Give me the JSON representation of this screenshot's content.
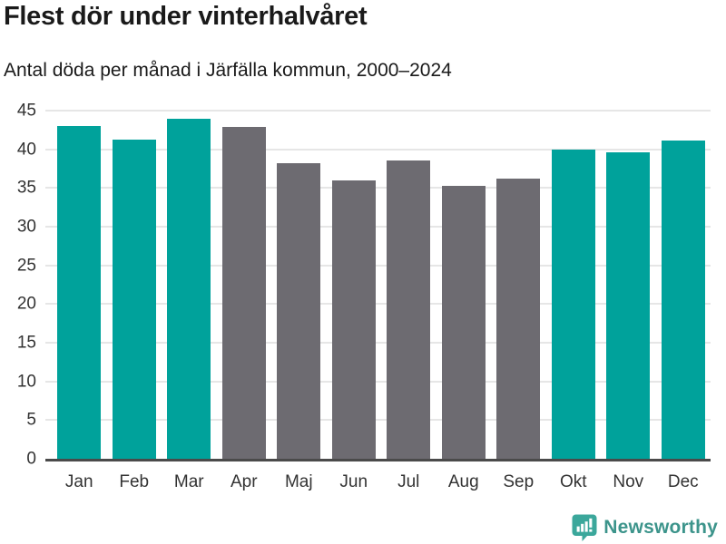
{
  "header": {
    "title": "Flest dör under vinterhalvåret",
    "subtitle": "Antal döda per månad i Järfälla kommun, 2000–2024"
  },
  "chart_data": {
    "type": "bar",
    "categories": [
      "Jan",
      "Feb",
      "Mar",
      "Apr",
      "Maj",
      "Jun",
      "Jul",
      "Aug",
      "Sep",
      "Okt",
      "Nov",
      "Dec"
    ],
    "values": [
      43,
      41.2,
      44,
      42.9,
      38.2,
      36,
      38.5,
      35.3,
      36.2,
      40,
      39.6,
      41.1
    ],
    "highlighted": [
      true,
      true,
      true,
      false,
      false,
      false,
      false,
      false,
      false,
      true,
      true,
      true
    ],
    "title": "Flest dör under vinterhalvåret",
    "subtitle": "Antal döda per månad i Järfälla kommun, 2000–2024",
    "xlabel": "",
    "ylabel": "",
    "ylim": [
      0,
      45
    ],
    "ytick_step": 5,
    "grid": true,
    "legend": "none",
    "colors": {
      "highlight": "#00a29b",
      "base": "#6d6b71",
      "gridline": "#e6e6e6",
      "axis_line": "#4a4a4a",
      "tick_text": "#333333"
    }
  },
  "footer": {
    "brand": "Newsworthy",
    "brand_text_color": "#3c948b",
    "logo_bubble_color": "#3ba79b",
    "logo_glyph": "mini-bar-chart-with-exclamation"
  }
}
